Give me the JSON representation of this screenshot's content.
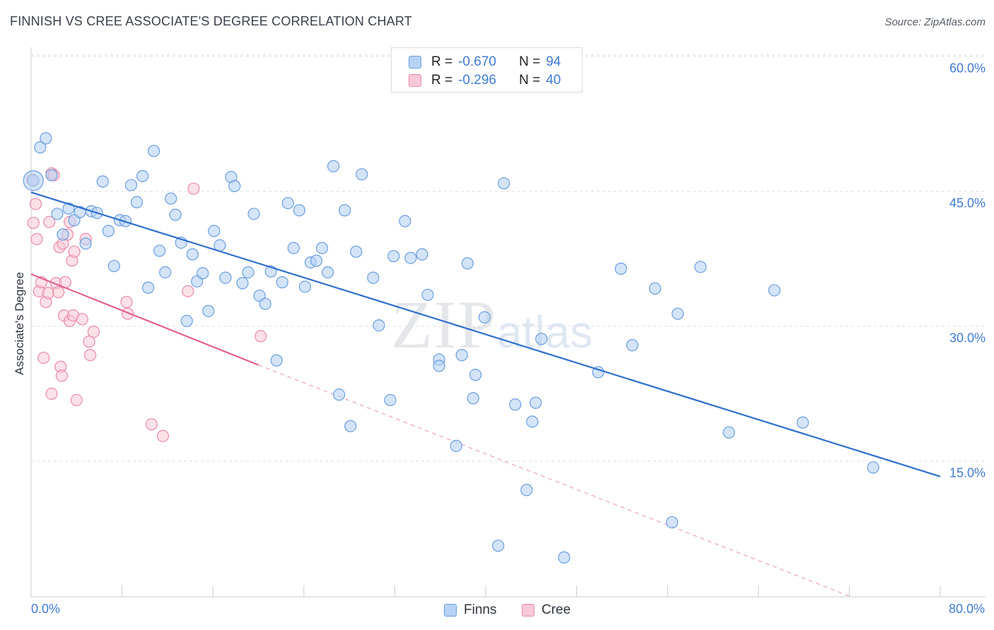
{
  "header": {
    "title": "FINNISH VS CREE ASSOCIATE'S DEGREE CORRELATION CHART",
    "source": "Source: ZipAtlas.com"
  },
  "watermark": {
    "zip": "ZIP",
    "atlas": "atlas"
  },
  "legend": {
    "finns": {
      "r_label": "R =",
      "r_value": "-0.670",
      "n_label": "N =",
      "n_value": "94"
    },
    "cree": {
      "r_label": "R =",
      "r_value": "-0.296",
      "n_label": "N =",
      "n_value": "40"
    }
  },
  "bottom_legend": {
    "finns": "Finns",
    "cree": "Cree"
  },
  "colors": {
    "finns_fill": "#b8d2f4",
    "finns_stroke": "#6a9ee0",
    "finns_line": "#2f6fce",
    "cree_fill": "#f9c8d7",
    "cree_stroke": "#e98aa8",
    "cree_line": "#e0628f",
    "grid": "#d9dce2",
    "tick_label": "#3f7bd6"
  },
  "chart_data": {
    "type": "scatter",
    "title": "FINNISH VS CREE ASSOCIATE'S DEGREE CORRELATION CHART",
    "xlabel": "",
    "ylabel": "Associate's Degree",
    "xlim": [
      0,
      80
    ],
    "ylim": [
      0,
      65
    ],
    "x_tick_labels": [
      "0.0%",
      "80.0%"
    ],
    "y_ticks": [
      15,
      30,
      45,
      60
    ],
    "y_tick_labels": [
      "15.0%",
      "30.0%",
      "45.0%",
      "60.0%"
    ],
    "grid": "horizontal dashed",
    "legend_placement": "top-center",
    "series": [
      {
        "name": "Finns",
        "r": -0.67,
        "n": 94,
        "trend": {
          "x": [
            0,
            80
          ],
          "y": [
            44.9,
            13.3
          ]
        },
        "points": [
          [
            0.2,
            46.2
          ],
          [
            0.8,
            49.9
          ],
          [
            1.3,
            50.9
          ],
          [
            1.8,
            46.8
          ],
          [
            2.3,
            42.5
          ],
          [
            2.8,
            40.2
          ],
          [
            3.3,
            43.1
          ],
          [
            3.8,
            41.8
          ],
          [
            4.3,
            42.7
          ],
          [
            4.8,
            39.2
          ],
          [
            5.3,
            42.8
          ],
          [
            5.8,
            42.6
          ],
          [
            6.3,
            46.1
          ],
          [
            6.8,
            40.6
          ],
          [
            7.3,
            36.7
          ],
          [
            7.8,
            41.8
          ],
          [
            8.3,
            41.7
          ],
          [
            8.8,
            45.7
          ],
          [
            9.3,
            43.8
          ],
          [
            9.8,
            46.7
          ],
          [
            10.3,
            34.3
          ],
          [
            10.8,
            49.5
          ],
          [
            11.3,
            38.4
          ],
          [
            11.8,
            36.0
          ],
          [
            12.3,
            44.2
          ],
          [
            12.7,
            42.4
          ],
          [
            13.2,
            39.3
          ],
          [
            13.7,
            30.6
          ],
          [
            14.2,
            38.0
          ],
          [
            14.6,
            35.0
          ],
          [
            15.1,
            35.9
          ],
          [
            15.6,
            31.7
          ],
          [
            16.1,
            40.6
          ],
          [
            16.6,
            39.0
          ],
          [
            17.1,
            35.4
          ],
          [
            17.6,
            46.6
          ],
          [
            17.9,
            45.6
          ],
          [
            18.6,
            34.8
          ],
          [
            19.1,
            36.0
          ],
          [
            19.6,
            42.5
          ],
          [
            20.1,
            33.4
          ],
          [
            20.6,
            32.5
          ],
          [
            21.1,
            36.1
          ],
          [
            21.6,
            26.2
          ],
          [
            22.1,
            34.9
          ],
          [
            22.6,
            43.7
          ],
          [
            23.1,
            38.7
          ],
          [
            23.6,
            42.9
          ],
          [
            24.1,
            34.4
          ],
          [
            24.6,
            37.1
          ],
          [
            25.1,
            37.3
          ],
          [
            25.6,
            38.7
          ],
          [
            26.1,
            36.0
          ],
          [
            26.6,
            47.8
          ],
          [
            27.6,
            42.9
          ],
          [
            27.1,
            22.4
          ],
          [
            28.1,
            18.9
          ],
          [
            28.6,
            38.3
          ],
          [
            29.1,
            46.9
          ],
          [
            30.1,
            35.4
          ],
          [
            30.6,
            30.1
          ],
          [
            31.6,
            21.8
          ],
          [
            31.9,
            37.8
          ],
          [
            32.9,
            41.7
          ],
          [
            33.4,
            37.6
          ],
          [
            34.4,
            38.0
          ],
          [
            34.9,
            33.5
          ],
          [
            35.9,
            26.3
          ],
          [
            35.9,
            25.6
          ],
          [
            37.4,
            16.7
          ],
          [
            37.9,
            26.8
          ],
          [
            38.4,
            37.0
          ],
          [
            38.9,
            22.0
          ],
          [
            39.1,
            24.6
          ],
          [
            39.9,
            31.0
          ],
          [
            41.1,
            5.6
          ],
          [
            41.6,
            45.9
          ],
          [
            42.6,
            21.3
          ],
          [
            43.6,
            11.8
          ],
          [
            44.1,
            19.4
          ],
          [
            44.4,
            21.5
          ],
          [
            44.9,
            28.6
          ],
          [
            46.9,
            4.3
          ],
          [
            49.9,
            24.9
          ],
          [
            51.9,
            36.4
          ],
          [
            52.9,
            27.9
          ],
          [
            54.9,
            34.2
          ],
          [
            56.4,
            8.2
          ],
          [
            56.9,
            31.4
          ],
          [
            58.9,
            36.6
          ],
          [
            61.4,
            18.2
          ],
          [
            65.4,
            34.0
          ],
          [
            67.9,
            19.3
          ],
          [
            74.1,
            14.3
          ]
        ]
      },
      {
        "name": "Cree",
        "r": -0.296,
        "n": 40,
        "trend": {
          "x": [
            0,
            20
          ],
          "y": [
            35.8,
            25.7
          ],
          "dashed_extension": {
            "x": [
              20,
              72
            ],
            "y": [
              25.7,
              0
            ]
          }
        },
        "points": [
          [
            0.1,
            46.3
          ],
          [
            0.2,
            41.5
          ],
          [
            0.4,
            43.6
          ],
          [
            0.5,
            39.7
          ],
          [
            0.7,
            33.9
          ],
          [
            0.9,
            34.9
          ],
          [
            1.1,
            26.5
          ],
          [
            1.3,
            32.7
          ],
          [
            1.5,
            33.7
          ],
          [
            1.6,
            41.6
          ],
          [
            1.8,
            22.5
          ],
          [
            1.8,
            47.0
          ],
          [
            2.0,
            46.8
          ],
          [
            2.2,
            34.8
          ],
          [
            2.4,
            33.8
          ],
          [
            2.5,
            38.8
          ],
          [
            2.6,
            25.5
          ],
          [
            2.7,
            24.5
          ],
          [
            2.8,
            39.2
          ],
          [
            2.9,
            31.2
          ],
          [
            3.0,
            34.9
          ],
          [
            3.2,
            40.2
          ],
          [
            3.4,
            41.6
          ],
          [
            3.4,
            30.6
          ],
          [
            3.6,
            37.3
          ],
          [
            3.7,
            31.2
          ],
          [
            3.8,
            38.3
          ],
          [
            4.0,
            21.8
          ],
          [
            4.5,
            30.8
          ],
          [
            4.8,
            39.7
          ],
          [
            5.1,
            28.3
          ],
          [
            5.2,
            26.8
          ],
          [
            5.5,
            29.4
          ],
          [
            8.4,
            32.7
          ],
          [
            8.5,
            31.4
          ],
          [
            10.6,
            19.1
          ],
          [
            11.6,
            17.8
          ],
          [
            13.8,
            33.9
          ],
          [
            14.3,
            45.3
          ],
          [
            20.2,
            28.9
          ]
        ]
      }
    ]
  }
}
